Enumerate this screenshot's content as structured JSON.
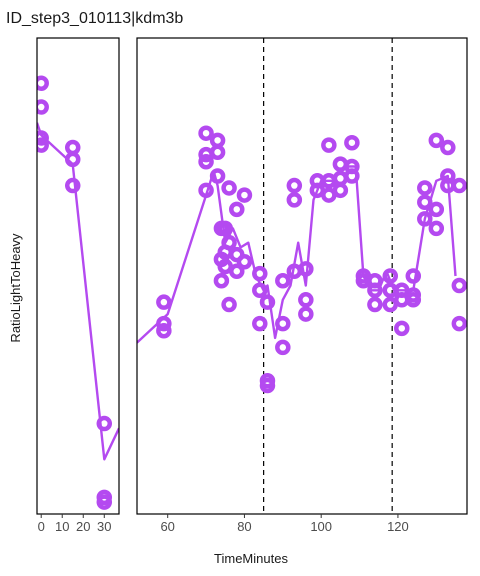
{
  "chart_data": {
    "type": "scatter",
    "title": "ID_step3_010113|kdm3b",
    "xlabel": "TimeMinutes",
    "ylabel": "RatioLightToHeavy",
    "color": "#b44af0",
    "y_tick_labels": "none",
    "grid": false,
    "panels": [
      {
        "xlim": [
          -2,
          37
        ],
        "x_ticks": [
          0,
          10,
          20,
          30
        ],
        "x_tick_labels": [
          "0",
          "10",
          "20",
          "30"
        ],
        "line": [
          [
            -2,
            0.822
          ],
          [
            0,
            0.796
          ],
          [
            15,
            0.735
          ],
          [
            30,
            0.115
          ],
          [
            37,
            0.18
          ]
        ],
        "points": [
          {
            "x": 0,
            "y": 0.905
          },
          {
            "x": 0,
            "y": 0.855
          },
          {
            "x": 0,
            "y": 0.79
          },
          {
            "x": 0,
            "y": 0.775
          },
          {
            "x": 15,
            "y": 0.77
          },
          {
            "x": 15,
            "y": 0.745
          },
          {
            "x": 15,
            "y": 0.69
          },
          {
            "x": 30,
            "y": 0.19
          },
          {
            "x": 30,
            "y": 0.035
          },
          {
            "x": 30,
            "y": 0.025
          }
        ]
      },
      {
        "xlim": [
          52,
          138
        ],
        "x_ticks": [
          60,
          80,
          100,
          120
        ],
        "x_tick_labels": [
          "60",
          "80",
          "100",
          "120"
        ],
        "vlines": [
          85,
          118.5
        ],
        "line": [
          [
            52,
            0.36
          ],
          [
            60,
            0.42
          ],
          [
            70,
            0.67
          ],
          [
            72,
            0.72
          ],
          [
            73,
            0.69
          ],
          [
            75,
            0.57
          ],
          [
            77,
            0.6
          ],
          [
            79,
            0.56
          ],
          [
            81,
            0.57
          ],
          [
            83,
            0.5
          ],
          [
            85,
            0.47
          ],
          [
            86,
            0.48
          ],
          [
            88,
            0.37
          ],
          [
            90,
            0.45
          ],
          [
            92,
            0.48
          ],
          [
            94,
            0.57
          ],
          [
            96,
            0.48
          ],
          [
            98,
            0.66
          ],
          [
            100,
            0.7
          ],
          [
            103,
            0.7
          ],
          [
            106,
            0.73
          ],
          [
            109,
            0.73
          ],
          [
            111,
            0.5
          ],
          [
            113,
            0.47
          ],
          [
            115,
            0.47
          ],
          [
            117,
            0.51
          ],
          [
            119,
            0.47
          ],
          [
            121,
            0.47
          ],
          [
            124,
            0.47
          ],
          [
            127,
            0.62
          ],
          [
            130,
            0.7
          ],
          [
            133,
            0.71
          ],
          [
            135,
            0.5
          ]
        ]
      }
    ],
    "points_panel2": [
      {
        "x": 59,
        "y": 0.445
      },
      {
        "x": 59,
        "y": 0.4
      },
      {
        "x": 59,
        "y": 0.385
      },
      {
        "x": 70,
        "y": 0.8
      },
      {
        "x": 70,
        "y": 0.755
      },
      {
        "x": 70,
        "y": 0.74
      },
      {
        "x": 70,
        "y": 0.68
      },
      {
        "x": 73,
        "y": 0.785
      },
      {
        "x": 73,
        "y": 0.76
      },
      {
        "x": 73,
        "y": 0.71
      },
      {
        "x": 74,
        "y": 0.6
      },
      {
        "x": 74,
        "y": 0.535
      },
      {
        "x": 74,
        "y": 0.49
      },
      {
        "x": 75,
        "y": 0.6
      },
      {
        "x": 75,
        "y": 0.55
      },
      {
        "x": 75,
        "y": 0.52
      },
      {
        "x": 76,
        "y": 0.685
      },
      {
        "x": 76,
        "y": 0.57
      },
      {
        "x": 76,
        "y": 0.44
      },
      {
        "x": 78,
        "y": 0.64
      },
      {
        "x": 78,
        "y": 0.545
      },
      {
        "x": 78,
        "y": 0.51
      },
      {
        "x": 80,
        "y": 0.67
      },
      {
        "x": 80,
        "y": 0.53
      },
      {
        "x": 84,
        "y": 0.505
      },
      {
        "x": 84,
        "y": 0.47
      },
      {
        "x": 84,
        "y": 0.4
      },
      {
        "x": 86,
        "y": 0.445
      },
      {
        "x": 86,
        "y": 0.28
      },
      {
        "x": 86,
        "y": 0.27
      },
      {
        "x": 90,
        "y": 0.49
      },
      {
        "x": 90,
        "y": 0.4
      },
      {
        "x": 90,
        "y": 0.35
      },
      {
        "x": 93,
        "y": 0.69
      },
      {
        "x": 93,
        "y": 0.66
      },
      {
        "x": 93,
        "y": 0.51
      },
      {
        "x": 96,
        "y": 0.515
      },
      {
        "x": 96,
        "y": 0.45
      },
      {
        "x": 96,
        "y": 0.42
      },
      {
        "x": 99,
        "y": 0.7
      },
      {
        "x": 99,
        "y": 0.68
      },
      {
        "x": 102,
        "y": 0.775
      },
      {
        "x": 102,
        "y": 0.7
      },
      {
        "x": 102,
        "y": 0.67
      },
      {
        "x": 105,
        "y": 0.735
      },
      {
        "x": 105,
        "y": 0.705
      },
      {
        "x": 105,
        "y": 0.68
      },
      {
        "x": 108,
        "y": 0.78
      },
      {
        "x": 108,
        "y": 0.73
      },
      {
        "x": 108,
        "y": 0.71
      },
      {
        "x": 111,
        "y": 0.5
      },
      {
        "x": 111,
        "y": 0.49
      },
      {
        "x": 114,
        "y": 0.49
      },
      {
        "x": 114,
        "y": 0.47
      },
      {
        "x": 114,
        "y": 0.44
      },
      {
        "x": 118,
        "y": 0.5
      },
      {
        "x": 118,
        "y": 0.47
      },
      {
        "x": 118,
        "y": 0.44
      },
      {
        "x": 121,
        "y": 0.47
      },
      {
        "x": 121,
        "y": 0.45
      },
      {
        "x": 121,
        "y": 0.39
      },
      {
        "x": 124,
        "y": 0.5
      },
      {
        "x": 124,
        "y": 0.46
      },
      {
        "x": 124,
        "y": 0.45
      },
      {
        "x": 127,
        "y": 0.685
      },
      {
        "x": 127,
        "y": 0.655
      },
      {
        "x": 127,
        "y": 0.62
      },
      {
        "x": 130,
        "y": 0.785
      },
      {
        "x": 130,
        "y": 0.64
      },
      {
        "x": 130,
        "y": 0.6
      },
      {
        "x": 133,
        "y": 0.77
      },
      {
        "x": 133,
        "y": 0.71
      },
      {
        "x": 133,
        "y": 0.69
      },
      {
        "x": 136,
        "y": 0.69
      },
      {
        "x": 136,
        "y": 0.48
      },
      {
        "x": 136,
        "y": 0.4
      }
    ]
  }
}
